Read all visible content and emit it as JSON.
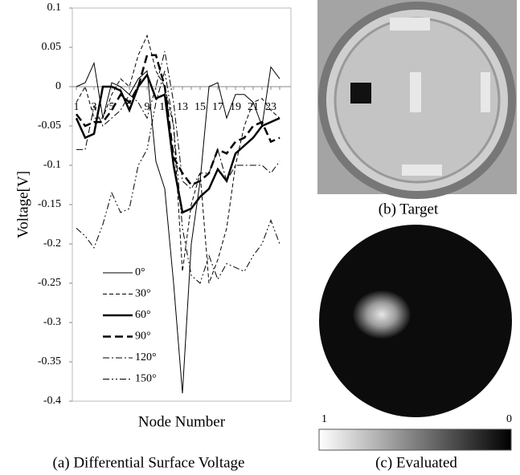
{
  "chart_data": {
    "type": "line",
    "x_label": "Node Number",
    "y_label": "Voltage[V]",
    "categories": [
      "1",
      null,
      "3",
      null,
      "5",
      null,
      "7",
      null,
      "9",
      null,
      "11",
      null,
      "13",
      null,
      "15",
      null,
      "17",
      null,
      "19",
      null,
      "21",
      null,
      "23",
      null
    ],
    "ylim": [
      -0.4,
      0.1
    ],
    "yticks": [
      0.1,
      0.05,
      0,
      -0.05,
      -0.1,
      -0.15,
      -0.2,
      -0.25,
      -0.3,
      -0.35,
      -0.4
    ],
    "series": [
      {
        "name": "0°",
        "color": "#000000",
        "values": [
          0,
          0.005,
          0.03,
          -0.04,
          0.005,
          0.0,
          -0.01,
          0.01,
          0.02,
          -0.095,
          -0.13,
          -0.25,
          -0.39,
          -0.2,
          -0.12,
          0.0,
          0.005,
          -0.04,
          -0.01,
          -0.01,
          -0.02,
          -0.05,
          0.025,
          0.01
        ]
      },
      {
        "name": "30°",
        "color": "#000000",
        "values": [
          -0.02,
          0.0,
          -0.04,
          -0.04,
          -0.01,
          0.01,
          0.0,
          0.04,
          0.065,
          0.02,
          0.0,
          -0.05,
          -0.235,
          -0.15,
          -0.11,
          -0.25,
          -0.22,
          -0.18,
          -0.1,
          -0.05,
          -0.02,
          -0.015,
          -0.03,
          -0.04
        ]
      },
      {
        "name": "60°",
        "color": "#000000",
        "values": [
          -0.04,
          -0.065,
          -0.06,
          0.0,
          0.0,
          -0.005,
          -0.03,
          0.0,
          0.015,
          -0.015,
          -0.01,
          -0.1,
          -0.16,
          -0.155,
          -0.14,
          -0.13,
          -0.105,
          -0.12,
          -0.085,
          -0.075,
          -0.065,
          -0.05,
          -0.045,
          -0.04
        ]
      },
      {
        "name": "90°",
        "color": "#000000",
        "values": [
          -0.035,
          -0.05,
          -0.045,
          -0.045,
          -0.03,
          -0.01,
          -0.02,
          0.0,
          0.04,
          0.04,
          0.0,
          -0.09,
          -0.11,
          -0.125,
          -0.12,
          -0.11,
          -0.08,
          -0.085,
          -0.07,
          -0.065,
          -0.05,
          -0.045,
          -0.07,
          -0.065
        ]
      },
      {
        "name": "120°",
        "color": "#000000",
        "values": [
          -0.08,
          -0.08,
          -0.025,
          -0.05,
          -0.04,
          -0.03,
          -0.01,
          -0.02,
          -0.04,
          0.0,
          0.045,
          -0.02,
          -0.12,
          -0.13,
          -0.11,
          -0.11,
          -0.08,
          -0.12,
          -0.1,
          -0.1,
          -0.1,
          -0.1,
          -0.11,
          -0.095
        ]
      },
      {
        "name": "150°",
        "color": "#000000",
        "values": [
          -0.18,
          -0.19,
          -0.205,
          -0.175,
          -0.135,
          -0.16,
          -0.155,
          -0.1,
          -0.08,
          -0.02,
          0.02,
          -0.05,
          -0.18,
          -0.24,
          -0.25,
          -0.215,
          -0.245,
          -0.225,
          -0.23,
          -0.235,
          -0.215,
          -0.2,
          -0.17,
          -0.2
        ]
      }
    ]
  },
  "captions": {
    "a": "(a) Differential Surface Voltage",
    "b": "(b) Target",
    "c": "(c) Evaluated"
  },
  "colorbar": {
    "left": "1",
    "right": "0"
  }
}
